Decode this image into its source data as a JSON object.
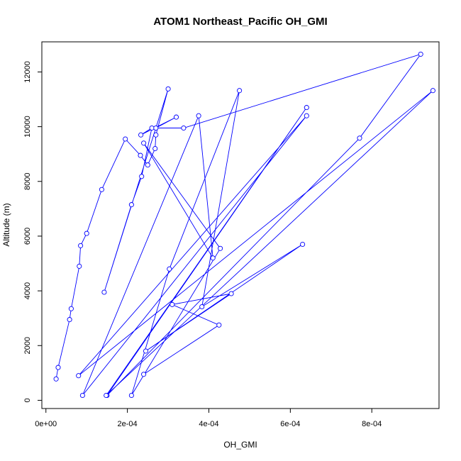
{
  "chart_data": {
    "type": "line",
    "title": "ATOM1 Northeast_Pacific OH_GMI",
    "xlabel": "OH_GMI",
    "ylabel": "Altitude (m)",
    "xlim": [
      -1e-05,
      0.000965
    ],
    "ylim": [
      -300,
      13100
    ],
    "x_ticks": [
      0,
      0.0002,
      0.0004,
      0.0006,
      0.0008
    ],
    "x_tick_labels": [
      "0e+00",
      "2e-04",
      "4e-04",
      "6e-04",
      "8e-04"
    ],
    "y_ticks": [
      0,
      2000,
      4000,
      6000,
      8000,
      10000,
      12000
    ],
    "y_tick_labels": [
      "0",
      "2000",
      "4000",
      "6000",
      "8000",
      "10000",
      "12000"
    ],
    "grid": false,
    "series": [
      {
        "color": "#0000ff",
        "marker": "open-circle",
        "x": [
          2.5e-05,
          3e-05,
          5.8e-05,
          6.2e-05,
          8.2e-05,
          8.5e-05,
          0.0001,
          0.000137,
          0.000195,
          0.000232,
          0.00025,
          0.000268,
          0.00027,
          0.0003,
          0.000143,
          0.00021,
          0.000235,
          0.00026,
          0.000233,
          0.00032,
          0.00027,
          0.000338,
          0.00092,
          0.00077,
          0.00015,
          0.00064,
          0.000148,
          0.00095,
          8e-05,
          0.00064,
          9e-05,
          0.000375,
          0.00041,
          0.00024,
          0.000428,
          0.00021,
          0.000303,
          0.000475,
          0.000383,
          0.00063,
          0.000245,
          0.000455,
          0.00031,
          0.000425,
          0.00024
        ],
        "y": [
          780,
          1200,
          2950,
          3350,
          4900,
          5650,
          6100,
          7700,
          9550,
          8950,
          8600,
          9200,
          9700,
          11380,
          3950,
          7150,
          8180,
          9950,
          9700,
          10350,
          9950,
          9950,
          12650,
          9580,
          180,
          10700,
          180,
          11320,
          900,
          10400,
          180,
          10400,
          5200,
          9400,
          5550,
          180,
          4800,
          11320,
          3420,
          5700,
          1800,
          3900,
          3500,
          2750,
          950
        ]
      }
    ]
  }
}
